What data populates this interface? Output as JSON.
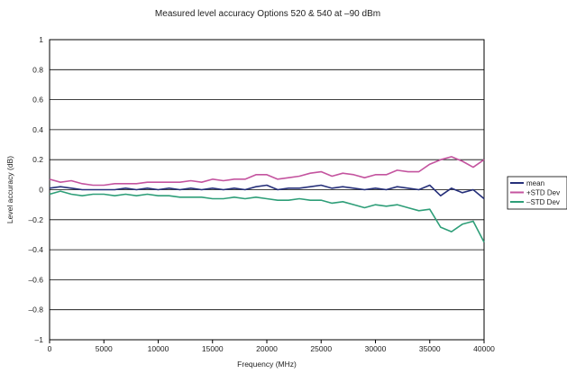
{
  "chart_data": {
    "type": "line",
    "title": "Measured level accuracy Options 520 & 540 at –90 dBm",
    "xlabel": "Frequency (MHz)",
    "ylabel": "Level accuracy (dB)",
    "xlim": [
      0,
      40000
    ],
    "ylim": [
      -1,
      1
    ],
    "x_ticks": [
      0,
      5000,
      10000,
      15000,
      20000,
      25000,
      30000,
      35000,
      40000
    ],
    "y_ticks": [
      1,
      0.8,
      0.6,
      0.4,
      0.2,
      0,
      -0.2,
      -0.4,
      -0.6,
      -0.8,
      -1
    ],
    "y_tick_labels": [
      "1",
      "0.8",
      "0.6",
      "0.4",
      "0.2",
      "0",
      "–0.2",
      "–0.4",
      "–0.6",
      "–0.8",
      "–1"
    ],
    "x_tick_labels": [
      "0",
      "5000",
      "10000",
      "15000",
      "20000",
      "25000",
      "30000",
      "35000",
      "40000"
    ],
    "grid": "horizontal",
    "legend_position": "right",
    "x": [
      0,
      1000,
      2000,
      3000,
      4000,
      5000,
      6000,
      7000,
      8000,
      9000,
      10000,
      11000,
      12000,
      13000,
      14000,
      15000,
      16000,
      17000,
      18000,
      19000,
      20000,
      21000,
      22000,
      23000,
      24000,
      25000,
      26000,
      27000,
      28000,
      29000,
      30000,
      31000,
      32000,
      33000,
      34000,
      35000,
      36000,
      37000,
      38000,
      39000,
      40000
    ],
    "series": [
      {
        "name": "mean",
        "color": "#26307a",
        "values": [
          0.01,
          0.02,
          0.01,
          0.0,
          0.0,
          0.0,
          0.0,
          0.01,
          0.0,
          0.01,
          0.0,
          0.01,
          0.0,
          0.01,
          0.0,
          0.01,
          0.0,
          0.01,
          0.0,
          0.02,
          0.03,
          0.0,
          0.01,
          0.01,
          0.02,
          0.03,
          0.01,
          0.02,
          0.01,
          0.0,
          0.01,
          0.0,
          0.02,
          0.01,
          0.0,
          0.03,
          -0.04,
          0.01,
          -0.02,
          0.0,
          -0.06
        ]
      },
      {
        "name": "+STD Dev",
        "color": "#c4549f",
        "values": [
          0.07,
          0.05,
          0.06,
          0.04,
          0.03,
          0.03,
          0.04,
          0.04,
          0.04,
          0.05,
          0.05,
          0.05,
          0.05,
          0.06,
          0.05,
          0.07,
          0.06,
          0.07,
          0.07,
          0.1,
          0.1,
          0.07,
          0.08,
          0.09,
          0.11,
          0.12,
          0.09,
          0.11,
          0.1,
          0.08,
          0.1,
          0.1,
          0.13,
          0.12,
          0.12,
          0.17,
          0.2,
          0.22,
          0.19,
          0.15,
          0.2
        ]
      },
      {
        "name": "–STD Dev",
        "color": "#2e9e78",
        "values": [
          -0.03,
          -0.01,
          -0.03,
          -0.04,
          -0.03,
          -0.03,
          -0.04,
          -0.03,
          -0.04,
          -0.03,
          -0.04,
          -0.04,
          -0.05,
          -0.05,
          -0.05,
          -0.06,
          -0.06,
          -0.05,
          -0.06,
          -0.05,
          -0.06,
          -0.07,
          -0.07,
          -0.06,
          -0.07,
          -0.07,
          -0.09,
          -0.08,
          -0.1,
          -0.12,
          -0.1,
          -0.11,
          -0.1,
          -0.12,
          -0.14,
          -0.13,
          -0.25,
          -0.28,
          -0.23,
          -0.21,
          -0.35
        ]
      }
    ]
  }
}
